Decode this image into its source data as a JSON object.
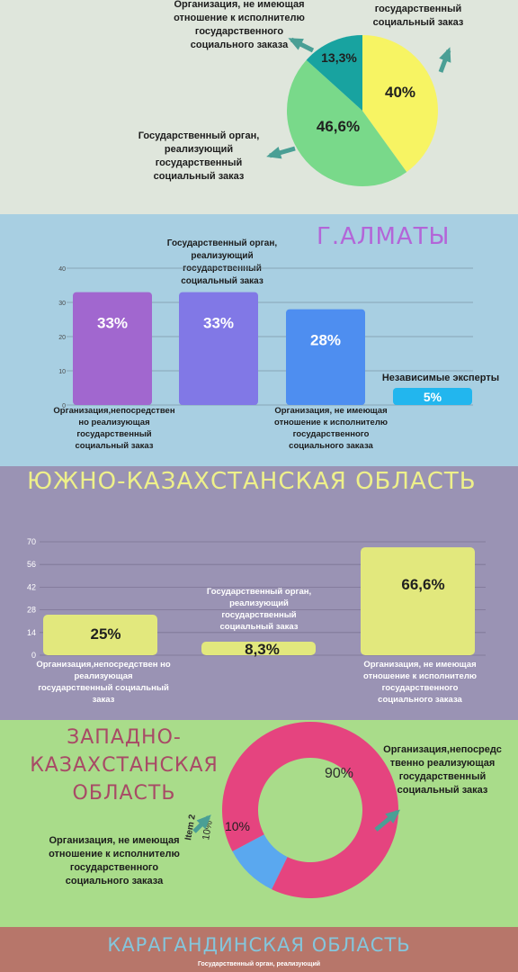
{
  "colors": {
    "pie_yellow": "#f7f463",
    "pie_green": "#79d98a",
    "pie_teal": "#18a3a0",
    "almaty_bars": [
      "#a167cf",
      "#8178e6",
      "#4e8ef0",
      "#22b6ee"
    ],
    "south_bars": "#e2e87d",
    "donut_pink": "#e5447f",
    "donut_blue": "#5aa8ef",
    "arrow": "#4a9f95"
  },
  "section1": {
    "labels": {
      "top_left": "Организация, не имеющая отношение к исполнителю государственного социального заказа",
      "top_right": "государственный социальный заказ",
      "bottom_left": "Государственный орган, реализующий государственный социальный заказ"
    },
    "chart_data": {
      "type": "pie",
      "slices": [
        {
          "value": 40,
          "label": "40%",
          "color": "#f7f463"
        },
        {
          "value": 46.6,
          "label": "46,6%",
          "color": "#79d98a"
        },
        {
          "value": 13.3,
          "label": "13,3%",
          "color": "#18a3a0"
        }
      ]
    }
  },
  "section2": {
    "title": "Г.АЛМАТЫ",
    "labels": {
      "top": "Государственный орган, реализующий государственный социальный заказ",
      "right": "Независимые эксперты",
      "bottom_left": "Организация,непосредствен но реализующая государственный социальный заказ",
      "bottom_mid": "Организация, не имеющая отношение к исполнителю государственного социального заказа"
    },
    "chart_data": {
      "type": "bar",
      "values": [
        33,
        33,
        28,
        5
      ],
      "value_labels": [
        "33%",
        "33%",
        "28%",
        "5%"
      ],
      "yticks": [
        "40",
        "30",
        "20",
        "10",
        "0"
      ],
      "ylim": [
        0,
        40
      ]
    }
  },
  "section3": {
    "title": "ЮЖНО-КАЗАХСТАНСКАЯ ОБЛАСТЬ",
    "labels": {
      "bottom_left": "Организация,непосредствен но реализующая государственный социальный заказ",
      "mid": "Государственный орган, реализующий государственный социальный заказ",
      "bottom_right": "Организация, не имеющая отношение к исполнителю государственного социального заказа"
    },
    "chart_data": {
      "type": "bar",
      "values": [
        25,
        8.3,
        66.6
      ],
      "value_labels": [
        "25%",
        "8,3%",
        "66,6%"
      ],
      "yticks": [
        "70",
        "56",
        "42",
        "28",
        "14",
        "0"
      ],
      "ylim": [
        0,
        70
      ]
    }
  },
  "section4": {
    "title_lines": [
      "ЗАПАДНО-",
      "КАЗАХСТАНСКАЯ",
      "ОБЛАСТЬ"
    ],
    "labels": {
      "right": "Организация,непосредс твенно реализующая государственный социальный заказ",
      "left": "Организация, не имеющая отношение к исполнителю государственного социального заказа",
      "item_tag": "Item 2",
      "item_value": "10%"
    },
    "chart_data": {
      "type": "pie",
      "slices": [
        {
          "value": 90,
          "label": "90%",
          "color": "#e5447f"
        },
        {
          "value": 10,
          "label": "10%",
          "color": "#5aa8ef"
        }
      ]
    }
  },
  "section5": {
    "title": "КАРАГАНДИНСКАЯ ОБЛАСТЬ",
    "caption": "Государственный орган, реализующий"
  }
}
